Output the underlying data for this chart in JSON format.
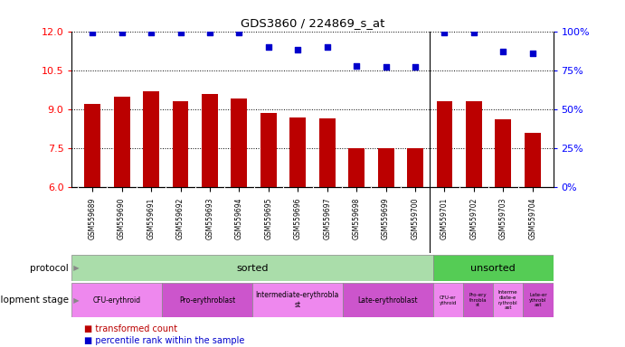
{
  "title": "GDS3860 / 224869_s_at",
  "samples": [
    "GSM559689",
    "GSM559690",
    "GSM559691",
    "GSM559692",
    "GSM559693",
    "GSM559694",
    "GSM559695",
    "GSM559696",
    "GSM559697",
    "GSM559698",
    "GSM559699",
    "GSM559700",
    "GSM559701",
    "GSM559702",
    "GSM559703",
    "GSM559704"
  ],
  "transformed_count": [
    9.2,
    9.5,
    9.7,
    9.3,
    9.6,
    9.4,
    8.85,
    8.7,
    8.65,
    7.5,
    7.5,
    7.5,
    9.3,
    9.3,
    8.6,
    8.1
  ],
  "percentile_rank": [
    99,
    99,
    99,
    99,
    99,
    99,
    90,
    88,
    90,
    78,
    77,
    77,
    99,
    99,
    87,
    86
  ],
  "bar_color": "#bb0000",
  "dot_color": "#0000cc",
  "ylim_left": [
    6,
    12
  ],
  "ylim_right": [
    0,
    100
  ],
  "yticks_left": [
    6,
    7.5,
    9,
    10.5,
    12
  ],
  "yticks_right": [
    0,
    25,
    50,
    75,
    100
  ],
  "protocol_sorted_color": "#aaddaa",
  "protocol_unsorted_color": "#55cc55",
  "dev_colors_sorted": [
    "#ee88ee",
    "#cc55cc",
    "#ee88ee",
    "#cc55cc"
  ],
  "dev_labels_sorted": [
    "CFU-erythroid",
    "Pro-erythroblast",
    "Intermediate-erythrobla\nst",
    "Late-erythroblast"
  ],
  "dev_colors_unsorted": [
    "#ee88ee",
    "#cc55cc",
    "#ee88ee",
    "#cc55cc"
  ],
  "dev_labels_unsorted": [
    "CFU-er\nythroid",
    "Pro-ery\nthrobla\nst",
    "Interme\ndiate-e\nrythrobl\nast",
    "Late-er\nythrobl\nast"
  ],
  "legend_bar_label": "transformed count",
  "legend_dot_label": "percentile rank within the sample",
  "background_color": "#ffffff",
  "plot_bg_color": "#ffffff"
}
